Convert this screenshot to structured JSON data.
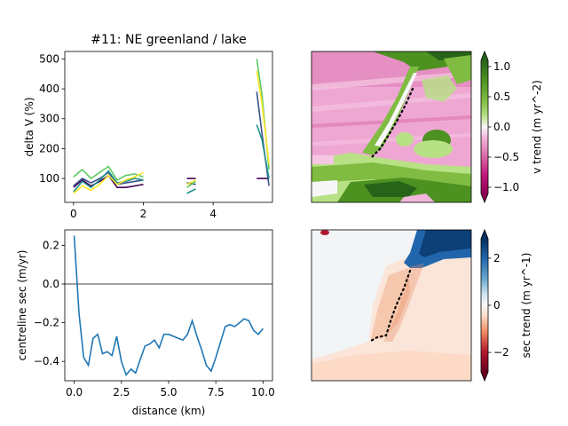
{
  "chart_data": [
    {
      "type": "line",
      "title": "#11: NE greenland / lake",
      "xlabel": "",
      "ylabel": "delta V (%)",
      "xlim": [
        -0.25,
        5.7
      ],
      "ylim": [
        20,
        525
      ],
      "xticks": [
        0,
        2,
        4
      ],
      "yticks": [
        100,
        200,
        300,
        400,
        500
      ],
      "grid": false,
      "series": [
        {
          "color": "#440154",
          "segments": [
            {
              "x": [
                0,
                0.25,
                0.5,
                0.75,
                1.0,
                1.25,
                1.5,
                1.75,
                2.0
              ],
              "y": [
                70,
                95,
                75,
                90,
                110,
                70,
                70,
                75,
                80
              ]
            },
            {
              "x": [
                3.25,
                3.5
              ],
              "y": [
                100,
                100
              ]
            },
            {
              "x": [
                5.25,
                5.6
              ],
              "y": [
                100,
                100
              ]
            }
          ]
        },
        {
          "color": "#3b528b",
          "segments": [
            {
              "x": [
                0,
                0.25,
                0.5,
                0.75,
                1.0,
                1.25,
                1.5,
                1.75,
                2.0
              ],
              "y": [
                75,
                100,
                85,
                100,
                120,
                80,
                85,
                90,
                95
              ]
            },
            {
              "x": [
                3.25,
                3.5
              ],
              "y": [
                85,
                80
              ]
            },
            {
              "x": [
                5.25,
                5.4,
                5.6
              ],
              "y": [
                390,
                250,
                75
              ]
            }
          ]
        },
        {
          "color": "#21918c",
          "segments": [
            {
              "x": [
                0,
                0.25,
                0.5,
                0.75,
                1.0,
                1.25,
                1.5,
                1.75,
                2.0
              ],
              "y": [
                55,
                90,
                70,
                95,
                125,
                85,
                90,
                100,
                95
              ]
            },
            {
              "x": [
                3.25,
                3.5
              ],
              "y": [
                50,
                65
              ]
            },
            {
              "x": [
                5.25,
                5.4,
                5.6
              ],
              "y": [
                280,
                230,
                100
              ]
            }
          ]
        },
        {
          "color": "#5ec962",
          "segments": [
            {
              "x": [
                0,
                0.25,
                0.5,
                0.75,
                1.0,
                1.25,
                1.5,
                1.75,
                2.0
              ],
              "y": [
                105,
                130,
                100,
                120,
                140,
                95,
                110,
                115,
                105
              ]
            },
            {
              "x": [
                3.25,
                3.5
              ],
              "y": [
                70,
                90
              ]
            },
            {
              "x": [
                5.25,
                5.4,
                5.6
              ],
              "y": [
                500,
                380,
                130
              ]
            }
          ]
        },
        {
          "color": "#fde725",
          "segments": [
            {
              "x": [
                0,
                0.25,
                0.5,
                0.75,
                1.0,
                1.25,
                1.5,
                1.75,
                2.0
              ],
              "y": [
                50,
                75,
                60,
                80,
                110,
                80,
                95,
                105,
                120
              ]
            },
            {
              "x": [
                3.25,
                3.5
              ],
              "y": [
                80,
                95
              ]
            },
            {
              "x": [
                5.25,
                5.4,
                5.6
              ],
              "y": [
                460,
                350,
                150
              ]
            }
          ]
        }
      ]
    },
    {
      "type": "heatmap",
      "colorbar_label": "v trend (m yr^-2)",
      "colormap": "PiYG",
      "clim": [
        -1.25,
        1.25
      ],
      "colorbar_ticks": [
        "1.0",
        "0.5",
        "0.0",
        "−0.5",
        "−1.0"
      ],
      "colorbar_tick_values": [
        1.0,
        0.5,
        0.0,
        -0.5,
        -1.0
      ],
      "centreline": "dotted"
    },
    {
      "type": "line",
      "title": "",
      "xlabel": "distance (km)",
      "ylabel": "centreline sec (m/yr)",
      "xlim": [
        -0.5,
        10.5
      ],
      "ylim": [
        -0.5,
        0.28
      ],
      "xticks": [
        "0.0",
        "2.5",
        "5.0",
        "7.5",
        "10.0"
      ],
      "xtick_values": [
        0,
        2.5,
        5,
        7.5,
        10
      ],
      "yticks": [
        "−0.4",
        "−0.2",
        "0.0",
        "0.2"
      ],
      "ytick_values": [
        -0.4,
        -0.2,
        0,
        0.2
      ],
      "hline": 0,
      "grid": false,
      "series": [
        {
          "color": "#1f77b4",
          "x": [
            0.0,
            0.25,
            0.5,
            0.75,
            1.0,
            1.25,
            1.5,
            1.75,
            2.0,
            2.25,
            2.5,
            2.75,
            3.0,
            3.25,
            3.5,
            3.75,
            4.0,
            4.25,
            4.5,
            4.75,
            5.0,
            5.25,
            5.5,
            5.75,
            6.0,
            6.25,
            6.5,
            6.75,
            7.0,
            7.25,
            7.5,
            7.75,
            8.0,
            8.25,
            8.5,
            8.75,
            9.0,
            9.25,
            9.5,
            9.75,
            10.0
          ],
          "y": [
            0.25,
            -0.15,
            -0.38,
            -0.42,
            -0.28,
            -0.26,
            -0.36,
            -0.35,
            -0.37,
            -0.27,
            -0.4,
            -0.47,
            -0.44,
            -0.46,
            -0.39,
            -0.32,
            -0.31,
            -0.29,
            -0.33,
            -0.26,
            -0.26,
            -0.27,
            -0.28,
            -0.29,
            -0.26,
            -0.19,
            -0.27,
            -0.34,
            -0.42,
            -0.45,
            -0.38,
            -0.3,
            -0.22,
            -0.21,
            -0.22,
            -0.2,
            -0.18,
            -0.19,
            -0.24,
            -0.26,
            -0.23
          ]
        }
      ]
    },
    {
      "type": "heatmap",
      "colorbar_label": "sec trend (m yr^-1)",
      "colormap": "RdBu",
      "clim": [
        -3.2,
        3.2
      ],
      "colorbar_ticks": [
        "2",
        "0",
        "−2"
      ],
      "colorbar_tick_values": [
        2,
        0,
        -2
      ],
      "centreline": "dotted"
    }
  ]
}
